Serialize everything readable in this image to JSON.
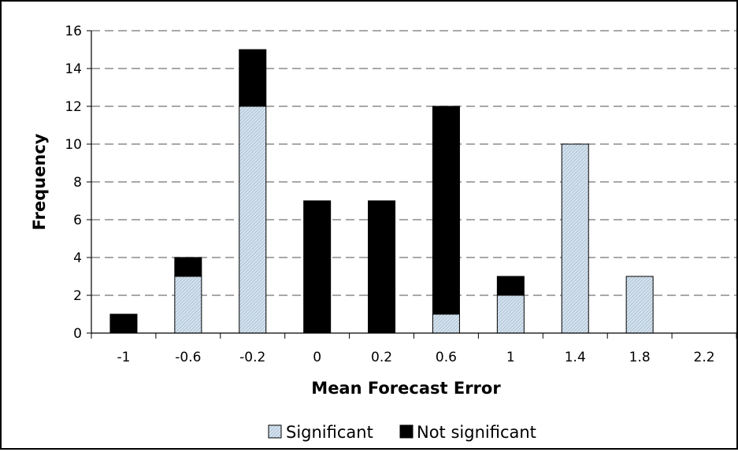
{
  "chart_data": {
    "type": "bar",
    "stacked": true,
    "title": "",
    "xlabel": "Mean Forecast Error",
    "ylabel": "Frequency",
    "categories": [
      "-1",
      "-0.6",
      "-0.2",
      "0",
      "0.2",
      "0.6",
      "1",
      "1.4",
      "1.8",
      "2.2"
    ],
    "series": [
      {
        "name": "Significant",
        "color": "#c8d8e8",
        "pattern": "hatched",
        "values": [
          0,
          3,
          12,
          0,
          0,
          1,
          2,
          10,
          3,
          0
        ]
      },
      {
        "name": "Not significant",
        "color": "#000000",
        "values": [
          1,
          1,
          3,
          7,
          7,
          11,
          1,
          0,
          0,
          0
        ]
      }
    ],
    "ylim": [
      0,
      16
    ],
    "yticks": [
      0,
      2,
      4,
      6,
      8,
      10,
      12,
      14,
      16
    ],
    "grid": "horizontal-dashed",
    "legend": "bottom"
  }
}
